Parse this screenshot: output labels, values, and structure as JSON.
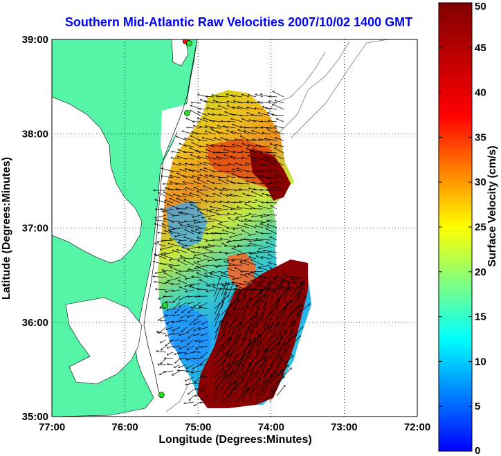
{
  "figure": {
    "title": "Southern Mid-Atlantic Raw Velocities 2007/10/02 1400 GMT",
    "xlabel": "Longitude (Degrees:Minutes)",
    "ylabel": "Latitude (Degrees:Minutes)",
    "x_ticks": [
      "77:00",
      "76:00",
      "75:00",
      "74:00",
      "73:00",
      "72:00"
    ],
    "y_ticks": [
      "39:00",
      "38:00",
      "37:00",
      "36:00",
      "35:00"
    ],
    "colorbar_label": "Surface Velocity (cm/s)",
    "colorbar_ticks": [
      "50",
      "45",
      "40",
      "35",
      "30",
      "25",
      "20",
      "15",
      "10",
      "5",
      "0"
    ],
    "colors": {
      "title": "#0000ff",
      "land": "#55f5a8",
      "station_green": "#22dd22",
      "station_red": "#ee1111"
    }
  },
  "chart_data": {
    "type": "heatmap",
    "title": "Southern Mid-Atlantic Raw Velocities 2007/10/02 1400 GMT",
    "xlabel": "Longitude (Degrees:Minutes)",
    "ylabel": "Latitude (Degrees:Minutes)",
    "xlim": [
      -77,
      -72
    ],
    "ylim": [
      35,
      39
    ],
    "color_range": [
      0,
      50
    ],
    "color_units": "cm/s",
    "colormap": "jet",
    "grid": true,
    "stations": [
      {
        "lon": -75.17,
        "lat": 38.98,
        "color": "red"
      },
      {
        "lon": -75.12,
        "lat": 38.96,
        "color": "green"
      },
      {
        "lon": -75.15,
        "lat": 38.22,
        "color": "green"
      },
      {
        "lon": -75.45,
        "lat": 36.18,
        "color": "green"
      },
      {
        "lon": -75.5,
        "lat": 35.23,
        "color": "green"
      }
    ]
  }
}
